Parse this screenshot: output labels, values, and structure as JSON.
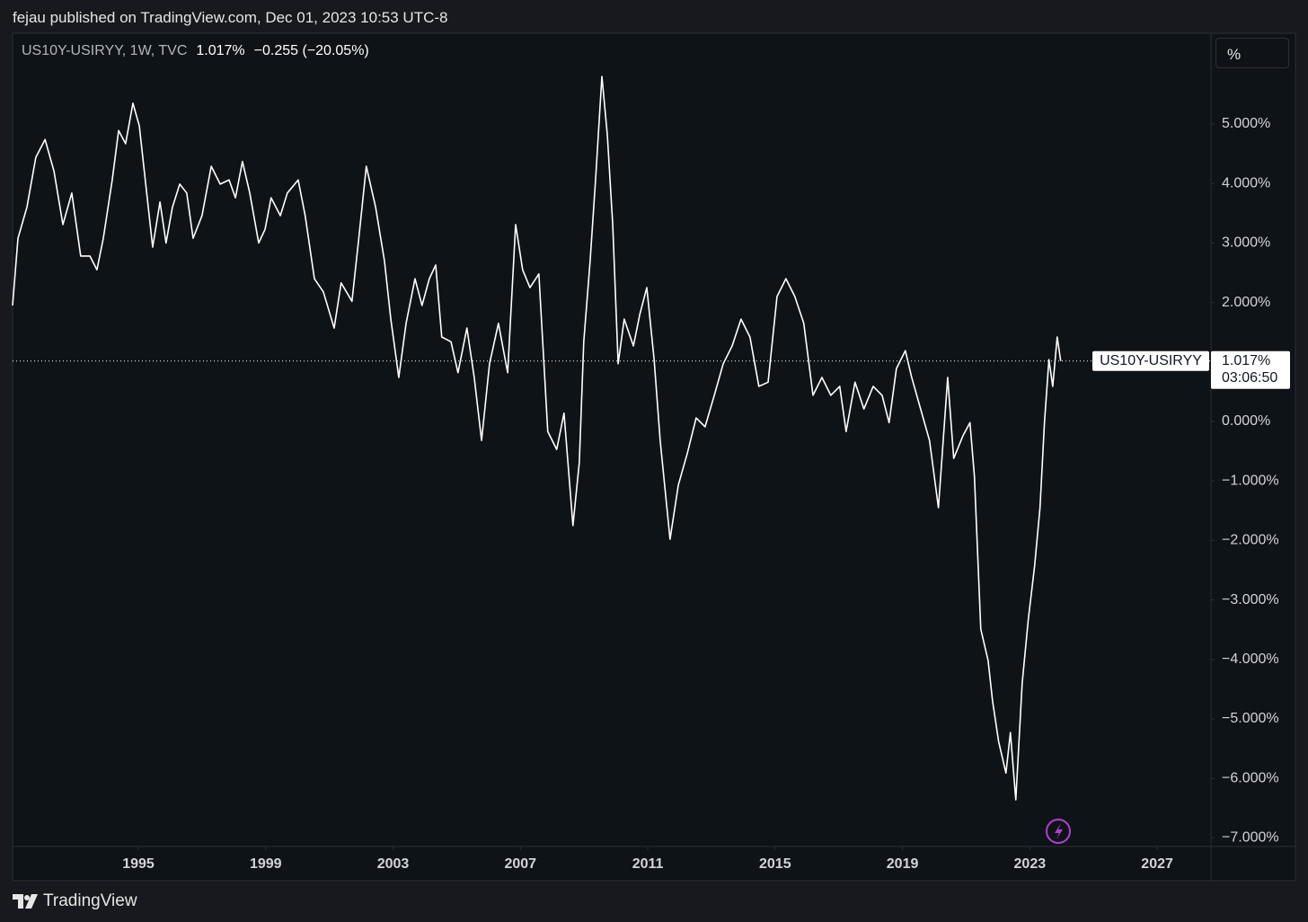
{
  "header": "fejau published on TradingView.com, Dec 01, 2023 10:53 UTC-8",
  "footer": "TradingView",
  "scale_button": "%",
  "chart_data": {
    "type": "line",
    "title": "US10Y-USIRYY, 1W, TVC",
    "last_value_label": "1.017%",
    "change": "−0.255 (−20.05%)",
    "countdown": "03:06:50",
    "xlim": [
      1991.05,
      2028.69
    ],
    "xticks": [
      1995,
      1999,
      2003,
      2007,
      2011,
      2015,
      2019,
      2023,
      2027
    ],
    "ylim": [
      -7.145,
      6.526
    ],
    "yticks": [
      {
        "value": 5,
        "label": "5.000%"
      },
      {
        "value": 4,
        "label": "4.000%"
      },
      {
        "value": 3,
        "label": "3.000%"
      },
      {
        "value": 2,
        "label": "2.000%"
      },
      {
        "value": 1,
        "label": "1.000%"
      },
      {
        "value": 0,
        "label": "0.000%"
      },
      {
        "value": -1,
        "label": "−1.000%"
      },
      {
        "value": -2,
        "label": "−2.000%"
      },
      {
        "value": -3,
        "label": "−3.000%"
      },
      {
        "value": -4,
        "label": "−4.000%"
      },
      {
        "value": -5,
        "label": "−5.000%"
      },
      {
        "value": -6,
        "label": "−6.000%"
      },
      {
        "value": -7,
        "label": "−7.000%"
      }
    ],
    "grid": false,
    "x": [
      1991.05,
      1991.22,
      1991.5,
      1991.78,
      1992.07,
      1992.35,
      1992.63,
      1992.91,
      1993.19,
      1993.48,
      1993.7,
      1993.9,
      1994.18,
      1994.38,
      1994.6,
      1994.83,
      1995.03,
      1995.17,
      1995.45,
      1995.68,
      1995.87,
      1996.07,
      1996.3,
      1996.52,
      1996.72,
      1997.0,
      1997.29,
      1997.57,
      1997.85,
      1998.05,
      1998.27,
      1998.5,
      1998.78,
      1998.98,
      1999.17,
      1999.46,
      1999.68,
      2000.02,
      2000.24,
      2000.53,
      2000.81,
      2001.15,
      2001.37,
      2001.71,
      2001.94,
      2002.16,
      2002.45,
      2002.73,
      2002.93,
      2003.18,
      2003.41,
      2003.69,
      2003.91,
      2004.14,
      2004.34,
      2004.53,
      2004.82,
      2005.04,
      2005.32,
      2005.55,
      2005.78,
      2006.03,
      2006.31,
      2006.6,
      2006.85,
      2007.07,
      2007.3,
      2007.58,
      2007.86,
      2008.14,
      2008.37,
      2008.65,
      2008.85,
      2008.99,
      2009.19,
      2009.36,
      2009.56,
      2009.73,
      2009.9,
      2010.07,
      2010.26,
      2010.55,
      2010.75,
      2010.97,
      2011.2,
      2011.39,
      2011.7,
      2011.96,
      2012.24,
      2012.52,
      2012.8,
      2013.09,
      2013.37,
      2013.65,
      2013.93,
      2014.21,
      2014.49,
      2014.78,
      2015.06,
      2015.34,
      2015.62,
      2015.9,
      2016.19,
      2016.47,
      2016.75,
      2017.03,
      2017.23,
      2017.51,
      2017.79,
      2018.08,
      2018.36,
      2018.58,
      2018.81,
      2019.09,
      2019.29,
      2019.57,
      2019.85,
      2020.13,
      2020.42,
      2020.61,
      2020.9,
      2021.12,
      2021.26,
      2021.46,
      2021.69,
      2021.83,
      2022.02,
      2022.25,
      2022.39,
      2022.56,
      2022.76,
      2022.95,
      2023.15,
      2023.32,
      2023.46,
      2023.6,
      2023.72,
      2023.86,
      2023.97
    ],
    "series": [
      {
        "name": "US10Y-USIRYY",
        "color": "#ffffff",
        "values": [
          1.95,
          3.08,
          3.6,
          4.44,
          4.74,
          4.21,
          3.31,
          3.84,
          2.78,
          2.78,
          2.55,
          3.08,
          4.06,
          4.89,
          4.67,
          5.35,
          4.97,
          4.29,
          2.93,
          3.69,
          3.0,
          3.6,
          3.99,
          3.84,
          3.08,
          3.46,
          4.29,
          3.99,
          4.06,
          3.76,
          4.37,
          3.84,
          3.0,
          3.23,
          3.76,
          3.46,
          3.84,
          4.06,
          3.46,
          2.4,
          2.18,
          1.57,
          2.33,
          2.02,
          3.16,
          4.29,
          3.61,
          2.7,
          1.72,
          0.74,
          1.65,
          2.4,
          1.95,
          2.4,
          2.63,
          1.42,
          1.34,
          0.82,
          1.57,
          0.74,
          -0.32,
          0.97,
          1.65,
          0.82,
          3.31,
          2.55,
          2.25,
          2.48,
          -0.17,
          -0.47,
          0.14,
          -1.75,
          -0.69,
          1.34,
          2.7,
          4.06,
          5.8,
          4.82,
          3.31,
          0.97,
          1.72,
          1.27,
          1.8,
          2.25,
          1.04,
          -0.32,
          -1.98,
          -1.07,
          -0.54,
          0.06,
          -0.09,
          0.44,
          0.97,
          1.27,
          1.72,
          1.42,
          0.59,
          0.66,
          2.1,
          2.4,
          2.1,
          1.65,
          0.44,
          0.74,
          0.44,
          0.59,
          -0.17,
          0.66,
          0.21,
          0.59,
          0.44,
          -0.02,
          0.89,
          1.19,
          0.74,
          0.21,
          -0.32,
          -1.45,
          0.74,
          -0.62,
          -0.24,
          -0.02,
          -0.92,
          -3.49,
          -4.02,
          -4.7,
          -5.38,
          -5.91,
          -5.23,
          -6.36,
          -4.4,
          -3.34,
          -2.43,
          -1.45,
          -0.02,
          1.04,
          0.59,
          1.42,
          1.017
        ]
      }
    ]
  }
}
